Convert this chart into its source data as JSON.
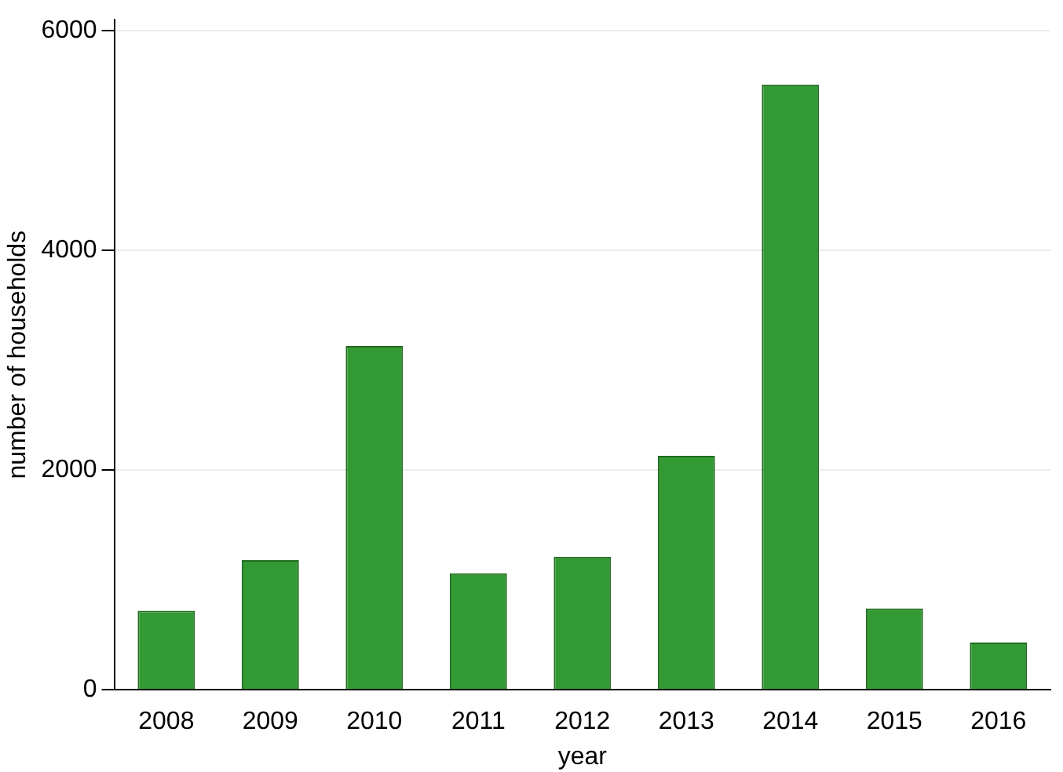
{
  "chart_data": {
    "type": "bar",
    "xlabel": "year",
    "ylabel": "number of households",
    "categories": [
      "2008",
      "2009",
      "2010",
      "2011",
      "2012",
      "2013",
      "2014",
      "2015",
      "2016"
    ],
    "values": [
      720,
      1180,
      3130,
      1060,
      1210,
      2130,
      5510,
      740,
      430
    ],
    "color": "#339933",
    "ylim": [
      0,
      6100
    ],
    "yticks": [
      0,
      2000,
      4000,
      6000
    ],
    "grid": "y",
    "legend": false
  }
}
